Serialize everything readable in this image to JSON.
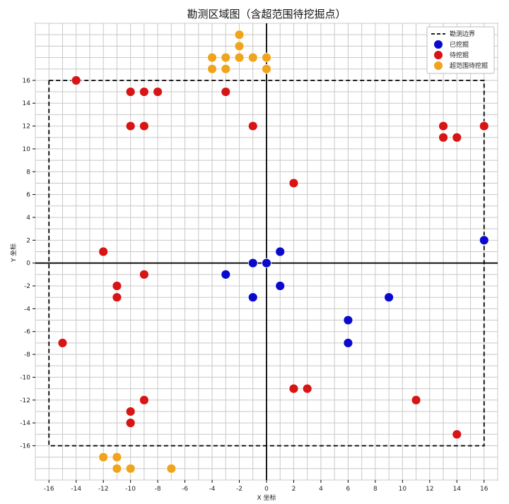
{
  "chart_data": {
    "type": "scatter",
    "title": "勘测区域图（含超范围待挖掘点）",
    "xlabel": "X 坐标",
    "ylabel": "Y 坐标",
    "xlim": [
      -17,
      17
    ],
    "ylim": [
      -19,
      21
    ],
    "grid": true,
    "x_ticks": [
      -16,
      -14,
      -12,
      -10,
      -8,
      -6,
      -4,
      -2,
      0,
      2,
      4,
      6,
      8,
      10,
      12,
      14,
      16
    ],
    "y_ticks": [
      -16,
      -14,
      -12,
      -10,
      -8,
      -6,
      -4,
      -2,
      0,
      2,
      4,
      6,
      8,
      10,
      12,
      14,
      16
    ],
    "legend_position": "top-right",
    "boundary": {
      "name": "勘测边界",
      "x_range": [
        -16,
        16
      ],
      "y_range": [
        -16,
        16
      ],
      "style": "dashed",
      "color": "#000000"
    },
    "series": [
      {
        "name": "已挖掘",
        "color": "#0a0acf",
        "points": [
          [
            -3,
            -1
          ],
          [
            -1,
            0
          ],
          [
            0,
            0
          ],
          [
            1,
            1
          ],
          [
            -1,
            -3
          ],
          [
            1,
            -2
          ],
          [
            6,
            -5
          ],
          [
            6,
            -7
          ],
          [
            9,
            -3
          ],
          [
            16,
            2
          ]
        ]
      },
      {
        "name": "待挖掘",
        "color": "#d81414",
        "points": [
          [
            -14,
            16
          ],
          [
            -10,
            15
          ],
          [
            -9,
            15
          ],
          [
            -8,
            15
          ],
          [
            -3,
            15
          ],
          [
            -10,
            12
          ],
          [
            -9,
            12
          ],
          [
            -1,
            12
          ],
          [
            13,
            12
          ],
          [
            16,
            12
          ],
          [
            13,
            11
          ],
          [
            14,
            11
          ],
          [
            2,
            7
          ],
          [
            -12,
            1
          ],
          [
            -9,
            -1
          ],
          [
            -11,
            -2
          ],
          [
            -11,
            -3
          ],
          [
            -15,
            -7
          ],
          [
            2,
            -11
          ],
          [
            3,
            -11
          ],
          [
            -9,
            -12
          ],
          [
            11,
            -12
          ],
          [
            -10,
            -13
          ],
          [
            -10,
            -14
          ],
          [
            14,
            -15
          ]
        ]
      },
      {
        "name": "超范围待挖掘",
        "color": "#f0a41c",
        "points": [
          [
            -2,
            20
          ],
          [
            -2,
            19
          ],
          [
            -4,
            18
          ],
          [
            -3,
            18
          ],
          [
            -2,
            18
          ],
          [
            -1,
            18
          ],
          [
            0,
            18
          ],
          [
            -4,
            17
          ],
          [
            -3,
            17
          ],
          [
            0,
            17
          ],
          [
            -12,
            -17
          ],
          [
            -11,
            -17
          ],
          [
            -11,
            -18
          ],
          [
            -10,
            -18
          ],
          [
            -7,
            -18
          ]
        ]
      }
    ]
  }
}
